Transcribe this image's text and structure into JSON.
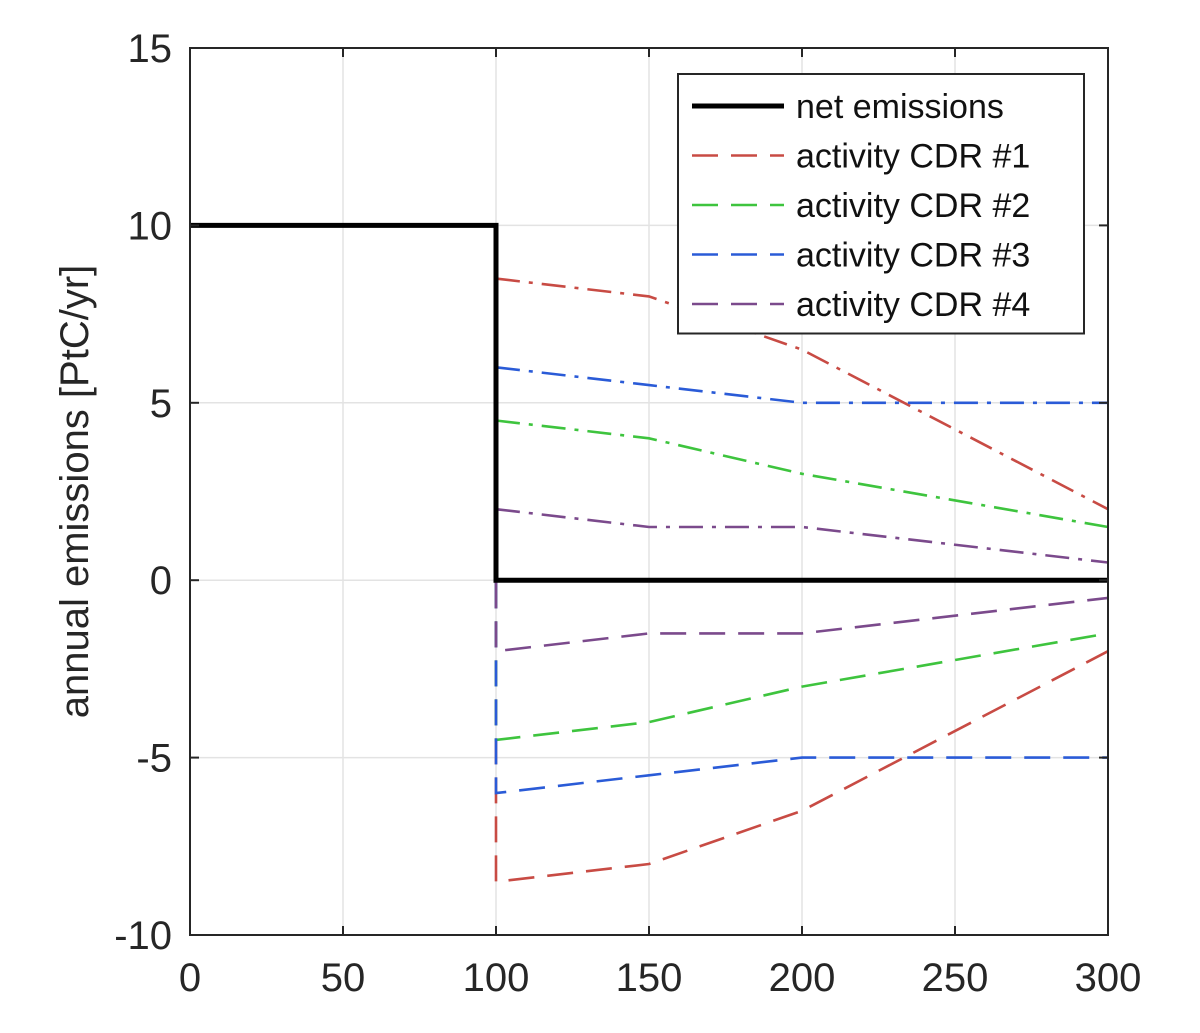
{
  "chart_data": {
    "type": "line",
    "ylabel": "annual emissions [PtC/yr]",
    "xlim": [
      0,
      300
    ],
    "ylim": [
      -10,
      15
    ],
    "x_ticks": [
      "0",
      "50",
      "100",
      "150",
      "200",
      "250",
      "300"
    ],
    "y_ticks": [
      "15",
      "10",
      "5",
      "0",
      "-5",
      "-10"
    ],
    "grid": true,
    "legend_position": "top-right",
    "series": [
      {
        "name": "net emissions",
        "color": "#000000",
        "style": "solid",
        "points": [
          [
            0,
            10
          ],
          [
            100,
            10
          ],
          [
            100,
            0
          ],
          [
            300,
            0
          ]
        ]
      },
      {
        "name": "activity CDR #1",
        "color": "#c84b44",
        "style": "dashed",
        "points": [
          [
            0,
            10
          ],
          [
            100,
            10
          ],
          [
            100,
            -8.5
          ],
          [
            150,
            -8
          ],
          [
            200,
            -6.5
          ],
          [
            300,
            -2
          ]
        ],
        "emissions_points": [
          [
            100,
            8.5
          ],
          [
            150,
            8
          ],
          [
            200,
            6.5
          ],
          [
            300,
            2
          ]
        ]
      },
      {
        "name": "activity CDR #2",
        "color": "#3ec43e",
        "style": "dashed",
        "points": [
          [
            0,
            10
          ],
          [
            100,
            10
          ],
          [
            100,
            -4.5
          ],
          [
            150,
            -4
          ],
          [
            200,
            -3
          ],
          [
            300,
            -1.5
          ]
        ],
        "emissions_points": [
          [
            100,
            4.5
          ],
          [
            150,
            4
          ],
          [
            200,
            3
          ],
          [
            300,
            1.5
          ]
        ]
      },
      {
        "name": "activity CDR #3",
        "color": "#2a5bd7",
        "style": "dashed",
        "points": [
          [
            0,
            10
          ],
          [
            100,
            10
          ],
          [
            100,
            -6
          ],
          [
            150,
            -5.5
          ],
          [
            200,
            -5
          ],
          [
            300,
            -5
          ]
        ],
        "emissions_points": [
          [
            100,
            6
          ],
          [
            150,
            5.5
          ],
          [
            200,
            5
          ],
          [
            300,
            5
          ]
        ]
      },
      {
        "name": "activity CDR #4",
        "color": "#7b4a8c",
        "style": "dashed",
        "points": [
          [
            0,
            10
          ],
          [
            100,
            10
          ],
          [
            100,
            -2
          ],
          [
            150,
            -1.5
          ],
          [
            200,
            -1.5
          ],
          [
            300,
            -0.5
          ]
        ],
        "emissions_points": [
          [
            100,
            2
          ],
          [
            150,
            1.5
          ],
          [
            200,
            1.5
          ],
          [
            300,
            0.5
          ]
        ]
      }
    ]
  }
}
